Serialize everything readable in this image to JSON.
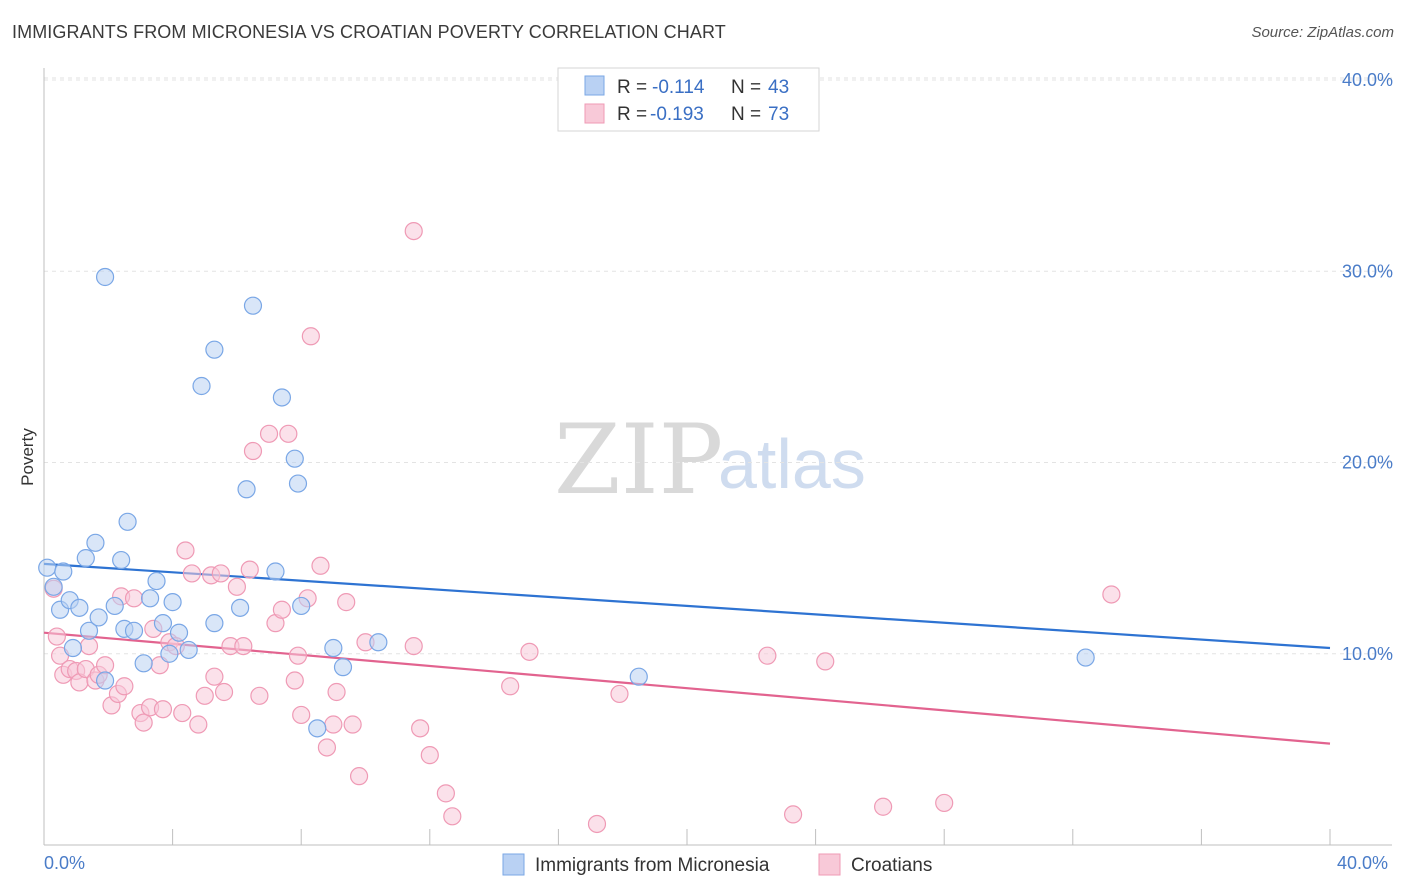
{
  "title": "IMMIGRANTS FROM MICRONESIA VS CROATIAN POVERTY CORRELATION CHART",
  "source": "Source: ZipAtlas.com",
  "watermark": {
    "zip": "ZIP",
    "atlas": "atlas"
  },
  "chart_data": {
    "type": "scatter",
    "ylabel": "Poverty",
    "xlim": [
      0,
      40
    ],
    "ylim": [
      0,
      40
    ],
    "x_tick_labels": [
      "0.0%",
      "40.0%"
    ],
    "y_ticks": [
      10,
      20,
      30,
      40
    ],
    "y_tick_labels": [
      "10.0%",
      "20.0%",
      "30.0%",
      "40.0%"
    ],
    "legend": [
      {
        "r_label": "R =",
        "r_value": "-0.114",
        "n_label": "N =",
        "n_value": "43"
      },
      {
        "r_label": "R =",
        "r_value": "-0.193",
        "n_label": "N =",
        "n_value": "73"
      }
    ],
    "series": [
      {
        "name": "Immigrants from Micronesia",
        "color": "#7aa7e6",
        "fill": "#b9d1f3",
        "line_color": "#2e73d2",
        "trend": {
          "x": [
            0,
            40
          ],
          "y": [
            14.7,
            10.3
          ]
        },
        "points": [
          [
            0.1,
            14.5
          ],
          [
            0.3,
            13.5
          ],
          [
            0.5,
            12.3
          ],
          [
            0.6,
            14.3
          ],
          [
            0.8,
            12.8
          ],
          [
            0.9,
            10.3
          ],
          [
            1.1,
            12.4
          ],
          [
            1.3,
            15.0
          ],
          [
            1.4,
            11.2
          ],
          [
            1.6,
            15.8
          ],
          [
            1.7,
            11.9
          ],
          [
            1.9,
            8.6
          ],
          [
            2.2,
            12.5
          ],
          [
            2.4,
            14.9
          ],
          [
            2.5,
            11.3
          ],
          [
            2.6,
            16.9
          ],
          [
            2.8,
            11.2
          ],
          [
            3.1,
            9.5
          ],
          [
            3.3,
            12.9
          ],
          [
            3.5,
            13.8
          ],
          [
            3.7,
            11.6
          ],
          [
            3.9,
            10.0
          ],
          [
            4.0,
            12.7
          ],
          [
            4.2,
            11.1
          ],
          [
            4.5,
            10.2
          ],
          [
            1.9,
            29.7
          ],
          [
            4.9,
            24.0
          ],
          [
            5.3,
            25.9
          ],
          [
            5.3,
            11.6
          ],
          [
            6.1,
            12.4
          ],
          [
            6.3,
            18.6
          ],
          [
            6.5,
            28.2
          ],
          [
            7.2,
            14.3
          ],
          [
            7.4,
            23.4
          ],
          [
            7.8,
            20.2
          ],
          [
            7.9,
            18.9
          ],
          [
            8.0,
            12.5
          ],
          [
            8.5,
            6.1
          ],
          [
            9.0,
            10.3
          ],
          [
            9.3,
            9.3
          ],
          [
            10.4,
            10.6
          ],
          [
            18.5,
            8.8
          ],
          [
            32.4,
            9.8
          ]
        ]
      },
      {
        "name": "Croatians",
        "color": "#ef9ab5",
        "fill": "#f8c9d8",
        "line_color": "#e2638f",
        "trend": {
          "x": [
            0,
            40
          ],
          "y": [
            11.1,
            5.3
          ]
        },
        "points": [
          [
            0.3,
            13.4
          ],
          [
            0.4,
            10.9
          ],
          [
            0.5,
            9.9
          ],
          [
            0.6,
            8.9
          ],
          [
            0.8,
            9.2
          ],
          [
            1.0,
            9.1
          ],
          [
            1.1,
            8.5
          ],
          [
            1.3,
            9.2
          ],
          [
            1.4,
            10.4
          ],
          [
            1.6,
            8.6
          ],
          [
            1.7,
            8.9
          ],
          [
            1.9,
            9.4
          ],
          [
            2.1,
            7.3
          ],
          [
            2.3,
            7.9
          ],
          [
            2.4,
            13.0
          ],
          [
            2.5,
            8.3
          ],
          [
            2.8,
            12.9
          ],
          [
            3.0,
            6.9
          ],
          [
            3.1,
            6.4
          ],
          [
            3.3,
            7.2
          ],
          [
            3.4,
            11.3
          ],
          [
            3.6,
            9.4
          ],
          [
            3.7,
            7.1
          ],
          [
            3.9,
            10.6
          ],
          [
            4.1,
            10.4
          ],
          [
            4.3,
            6.9
          ],
          [
            4.4,
            15.4
          ],
          [
            4.6,
            14.2
          ],
          [
            4.8,
            6.3
          ],
          [
            5.0,
            7.8
          ],
          [
            5.2,
            14.1
          ],
          [
            5.3,
            8.8
          ],
          [
            5.5,
            14.2
          ],
          [
            5.6,
            8.0
          ],
          [
            5.8,
            10.4
          ],
          [
            6.0,
            13.5
          ],
          [
            6.2,
            10.4
          ],
          [
            6.4,
            14.4
          ],
          [
            6.5,
            20.6
          ],
          [
            6.7,
            7.8
          ],
          [
            7.0,
            21.5
          ],
          [
            7.2,
            11.6
          ],
          [
            7.4,
            12.3
          ],
          [
            7.6,
            21.5
          ],
          [
            7.8,
            8.6
          ],
          [
            7.9,
            9.9
          ],
          [
            8.0,
            6.8
          ],
          [
            8.2,
            12.9
          ],
          [
            8.3,
            26.6
          ],
          [
            8.6,
            14.6
          ],
          [
            8.8,
            5.1
          ],
          [
            9.0,
            6.3
          ],
          [
            9.1,
            8.0
          ],
          [
            9.4,
            12.7
          ],
          [
            9.6,
            6.3
          ],
          [
            9.8,
            3.6
          ],
          [
            10.0,
            10.6
          ],
          [
            11.5,
            10.4
          ],
          [
            11.7,
            6.1
          ],
          [
            12.0,
            4.7
          ],
          [
            11.5,
            32.1
          ],
          [
            12.5,
            2.7
          ],
          [
            12.7,
            1.5
          ],
          [
            14.5,
            8.3
          ],
          [
            15.1,
            10.1
          ],
          [
            17.2,
            1.1
          ],
          [
            17.9,
            7.9
          ],
          [
            22.5,
            9.9
          ],
          [
            23.3,
            1.6
          ],
          [
            24.3,
            9.6
          ],
          [
            26.1,
            2.0
          ],
          [
            28.0,
            2.2
          ],
          [
            33.2,
            13.1
          ]
        ]
      }
    ]
  }
}
